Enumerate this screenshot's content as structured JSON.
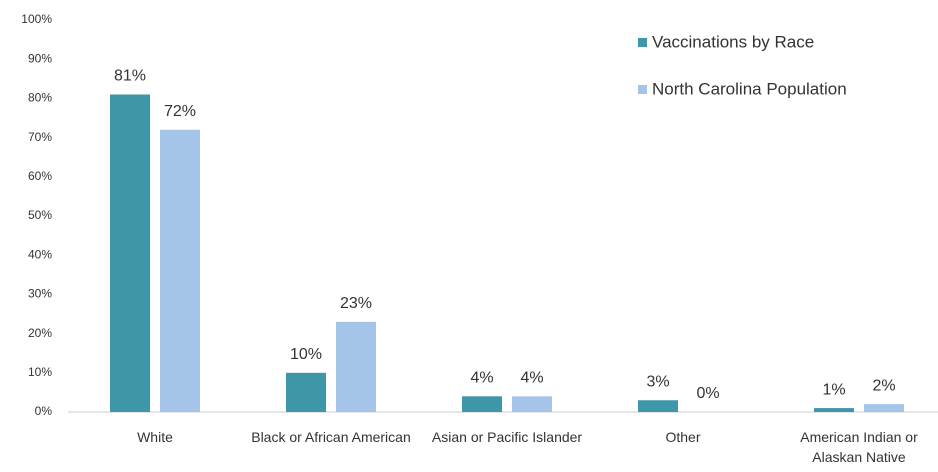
{
  "chart_data": {
    "type": "bar",
    "categories": [
      "White",
      "Black or African American",
      "Asian or Pacific Islander",
      "Other",
      "American Indian or Alaskan Native"
    ],
    "series": [
      {
        "name": "Vaccinations by Race",
        "color": "#3d97a8",
        "values": [
          81,
          10,
          4,
          3,
          1
        ],
        "value_labels": [
          "81%",
          "10%",
          "4%",
          "3%",
          "1%"
        ]
      },
      {
        "name": "North Carolina Population",
        "color": "#a4c4ea",
        "values": [
          72,
          23,
          4,
          0,
          2
        ],
        "value_labels": [
          "72%",
          "23%",
          "4%",
          "0%",
          "2%"
        ]
      }
    ],
    "ylim": [
      0,
      100
    ],
    "yticks": [
      {
        "value": 0,
        "label": "0%"
      },
      {
        "value": 10,
        "label": "10%"
      },
      {
        "value": 20,
        "label": "20%"
      },
      {
        "value": 30,
        "label": "30%"
      },
      {
        "value": 40,
        "label": "40%"
      },
      {
        "value": 50,
        "label": "50%"
      },
      {
        "value": 60,
        "label": "60%"
      },
      {
        "value": 70,
        "label": "70%"
      },
      {
        "value": 80,
        "label": "80%"
      },
      {
        "value": 90,
        "label": "90%"
      },
      {
        "value": 100,
        "label": "100%"
      }
    ],
    "grid": false,
    "legend": "top-right"
  }
}
